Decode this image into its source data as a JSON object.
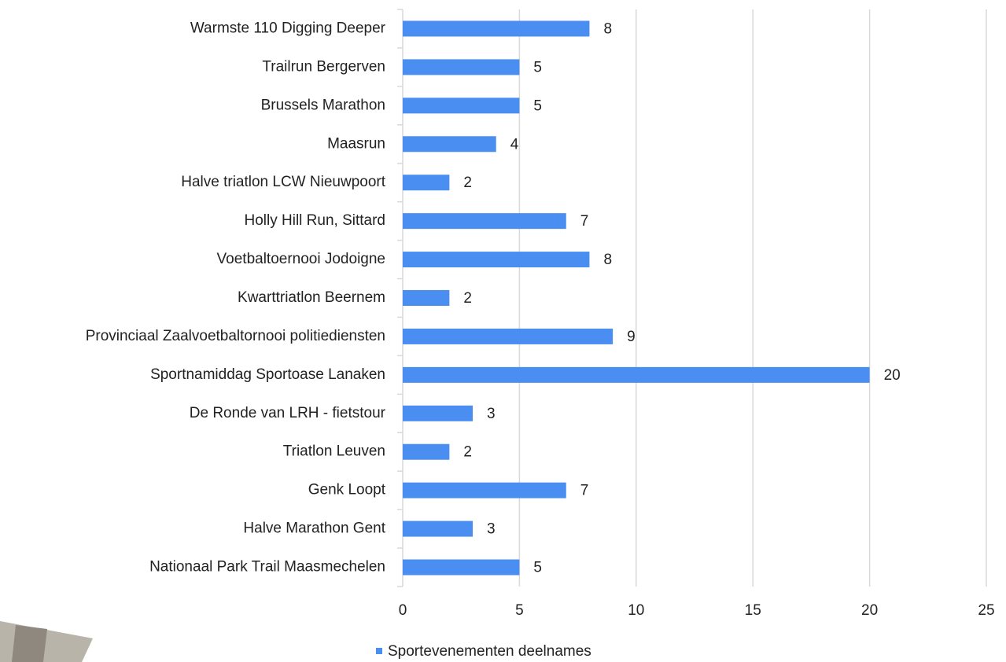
{
  "chart_data": {
    "type": "barh",
    "categories": [
      "Warmste 110 Digging Deeper",
      "Trailrun Bergerven",
      "Brussels Marathon",
      "Maasrun",
      "Halve triatlon LCW Nieuwpoort",
      "Holly Hill Run, Sittard",
      "Voetbaltoernooi Jodoigne",
      "Kwarttriatlon Beernem",
      "Provinciaal Zaalvoetbaltornooi politiediensten",
      "Sportnamiddag Sportoase Lanaken",
      "De Ronde van LRH - fietstour",
      "Triatlon Leuven",
      "Genk Loopt",
      "Halve Marathon Gent",
      "Nationaal Park Trail Maasmechelen"
    ],
    "series": [
      {
        "name": "Sportevenementen deelnames",
        "color": "#4a8ef2",
        "values": [
          8,
          5,
          5,
          4,
          2,
          7,
          8,
          2,
          9,
          20,
          3,
          2,
          7,
          3,
          5
        ]
      }
    ],
    "xlim": [
      0,
      25
    ],
    "xticks": [
      0,
      5,
      10,
      15,
      20,
      25
    ],
    "grid": true,
    "legend": "bottom"
  }
}
